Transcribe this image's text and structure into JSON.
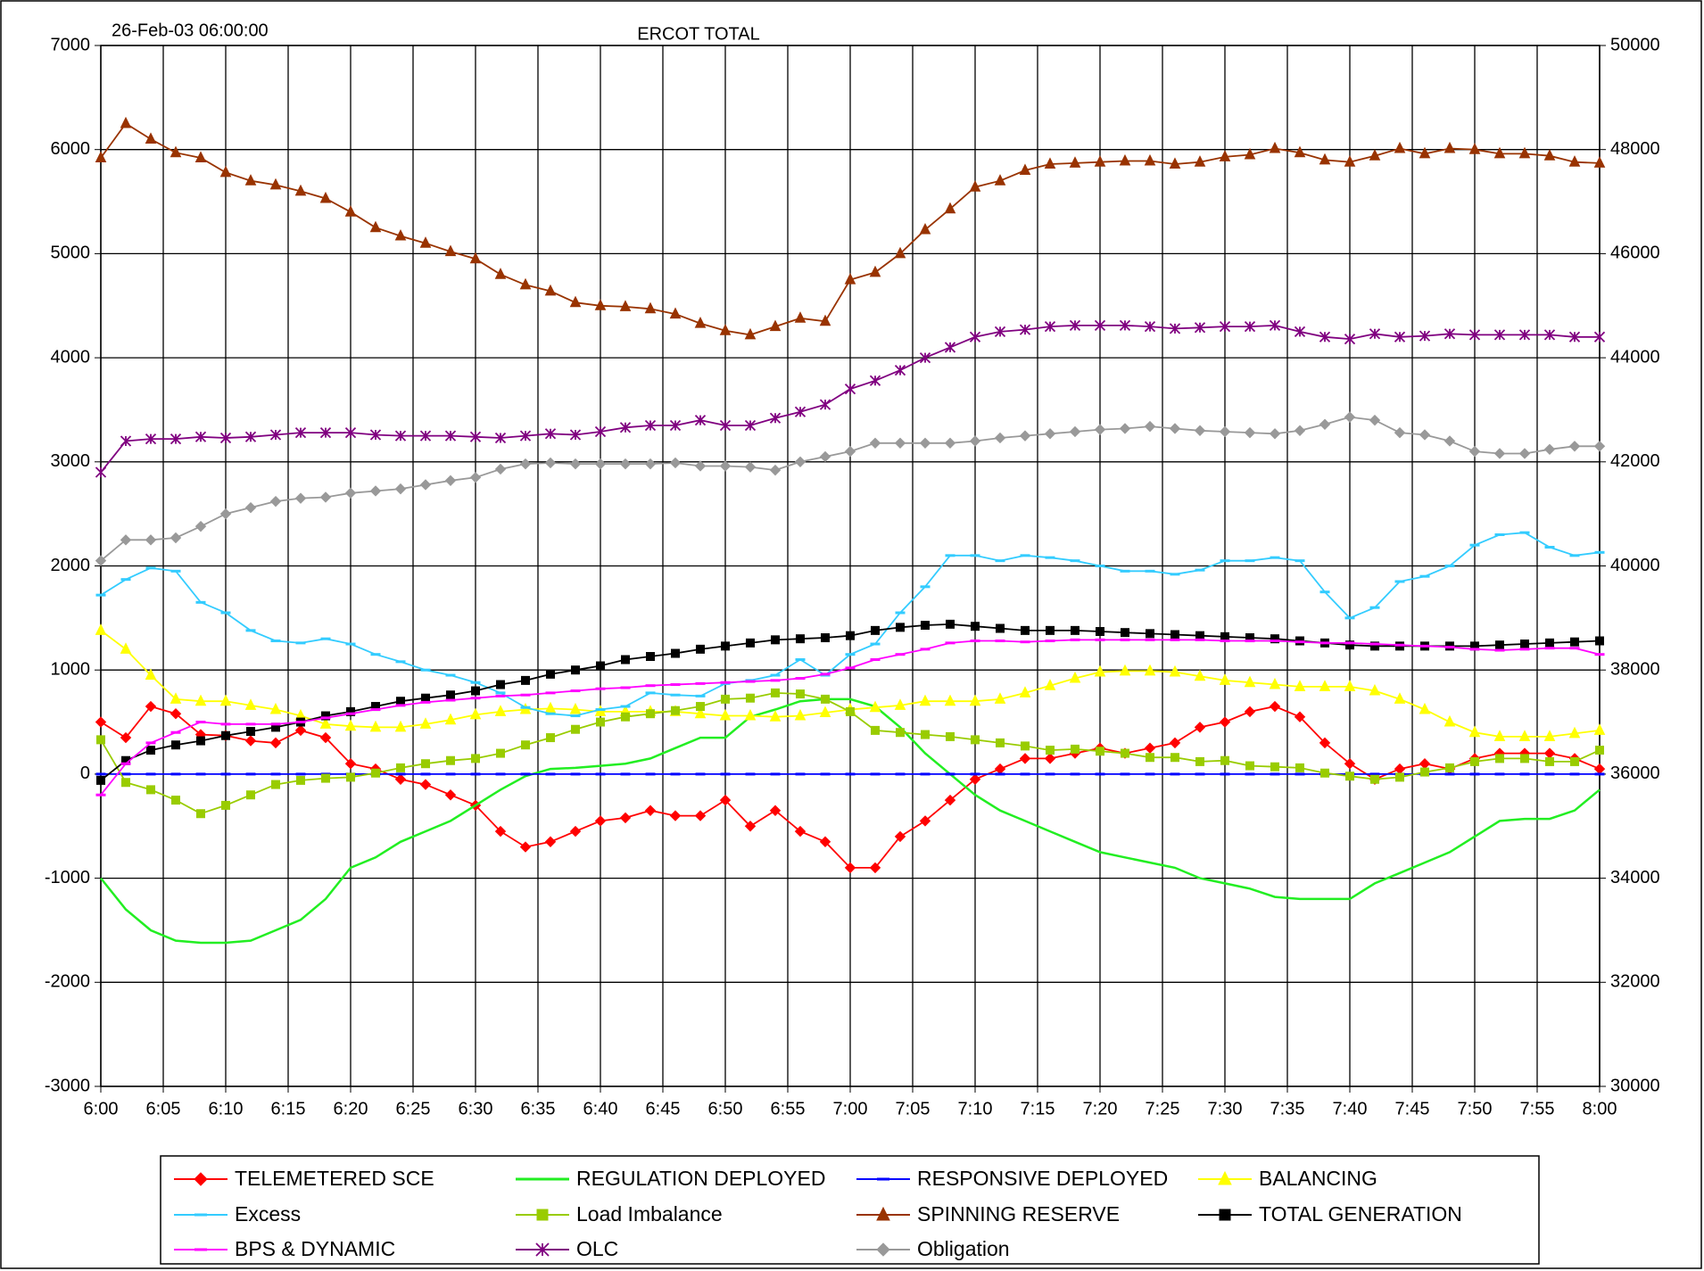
{
  "chart_data": {
    "type": "line",
    "title": "ERCOT TOTAL",
    "annotations": [
      "26-Feb-03 06:00:00"
    ],
    "x": [
      0,
      2,
      4,
      6,
      8,
      10,
      12,
      14,
      16,
      18,
      20,
      22,
      24,
      26,
      28,
      30,
      32,
      34,
      36,
      38,
      40,
      42,
      44,
      46,
      48,
      50,
      52,
      54,
      56,
      58,
      60,
      62,
      64,
      66,
      68,
      70,
      72,
      74,
      76,
      78,
      80,
      82,
      84,
      86,
      88,
      90,
      92,
      94,
      96,
      98,
      100,
      102,
      104,
      106,
      108,
      110,
      112,
      114,
      116,
      118,
      120
    ],
    "xlim": [
      0,
      120
    ],
    "xticks": [
      {
        "value": 0,
        "label": "6:00"
      },
      {
        "value": 5,
        "label": "6:05"
      },
      {
        "value": 10,
        "label": "6:10"
      },
      {
        "value": 15,
        "label": "6:15"
      },
      {
        "value": 20,
        "label": "6:20"
      },
      {
        "value": 25,
        "label": "6:25"
      },
      {
        "value": 30,
        "label": "6:30"
      },
      {
        "value": 35,
        "label": "6:35"
      },
      {
        "value": 40,
        "label": "6:40"
      },
      {
        "value": 45,
        "label": "6:45"
      },
      {
        "value": 50,
        "label": "6:50"
      },
      {
        "value": 55,
        "label": "6:55"
      },
      {
        "value": 60,
        "label": "7:00"
      },
      {
        "value": 65,
        "label": "7:05"
      },
      {
        "value": 70,
        "label": "7:10"
      },
      {
        "value": 75,
        "label": "7:15"
      },
      {
        "value": 80,
        "label": "7:20"
      },
      {
        "value": 85,
        "label": "7:25"
      },
      {
        "value": 90,
        "label": "7:30"
      },
      {
        "value": 95,
        "label": "7:35"
      },
      {
        "value": 100,
        "label": "7:40"
      },
      {
        "value": 105,
        "label": "7:45"
      },
      {
        "value": 110,
        "label": "7:50"
      },
      {
        "value": 115,
        "label": "7:55"
      },
      {
        "value": 120,
        "label": "8:00"
      }
    ],
    "ylim": [
      -3000,
      7000
    ],
    "yticks": [
      -3000,
      -2000,
      -1000,
      0,
      1000,
      2000,
      3000,
      4000,
      5000,
      6000,
      7000
    ],
    "y2lim": [
      30000,
      50000
    ],
    "y2ticks": [
      30000,
      32000,
      34000,
      36000,
      38000,
      40000,
      42000,
      44000,
      46000,
      48000,
      50000
    ],
    "grid": true,
    "legend": "bottom",
    "series": [
      {
        "name": "TELEMETERED SCE",
        "color": "#ff0000",
        "marker": "diamond",
        "values": [
          500,
          350,
          650,
          580,
          380,
          370,
          320,
          300,
          420,
          350,
          100,
          50,
          -50,
          -100,
          -200,
          -300,
          -550,
          -700,
          -650,
          -550,
          -450,
          -420,
          -350,
          -400,
          -400,
          -250,
          -500,
          -350,
          -550,
          -650,
          -900,
          -900,
          -600,
          -450,
          -250,
          -50,
          50,
          150,
          150,
          200,
          250,
          200,
          250,
          300,
          450,
          500,
          600,
          650,
          550,
          300,
          100,
          -50,
          50,
          100,
          50,
          150,
          200,
          200,
          200,
          150,
          50
        ]
      },
      {
        "name": "REGULATION DEPLOYED",
        "color": "#22ee22",
        "marker": "none",
        "values": [
          -1000,
          -1300,
          -1500,
          -1600,
          -1620,
          -1620,
          -1600,
          -1500,
          -1400,
          -1200,
          -900,
          -800,
          -650,
          -550,
          -450,
          -300,
          -150,
          -20,
          50,
          60,
          80,
          100,
          150,
          250,
          350,
          350,
          550,
          620,
          700,
          720,
          720,
          650,
          450,
          200,
          0,
          -200,
          -350,
          -450,
          -550,
          -650,
          -750,
          -800,
          -850,
          -900,
          -1000,
          -1050,
          -1100,
          -1180,
          -1200,
          -1200,
          -1200,
          -1050,
          -950,
          -850,
          -750,
          -600,
          -450,
          -430,
          -430,
          -350,
          -150
        ]
      },
      {
        "name": "RESPONSIVE DEPLOYED",
        "color": "#0000ff",
        "marker": "dash",
        "values": [
          0,
          0,
          0,
          0,
          0,
          0,
          0,
          0,
          0,
          0,
          0,
          0,
          0,
          0,
          0,
          0,
          0,
          0,
          0,
          0,
          0,
          0,
          0,
          0,
          0,
          0,
          0,
          0,
          0,
          0,
          0,
          0,
          0,
          0,
          0,
          0,
          0,
          0,
          0,
          0,
          0,
          0,
          0,
          0,
          0,
          0,
          0,
          0,
          0,
          0,
          0,
          0,
          0,
          0,
          0,
          0,
          0,
          0,
          0,
          0,
          0
        ]
      },
      {
        "name": "BALANCING",
        "color": "#ffff00",
        "marker": "triangle",
        "values": [
          1380,
          1200,
          950,
          720,
          700,
          700,
          660,
          620,
          560,
          480,
          460,
          450,
          450,
          480,
          520,
          570,
          600,
          620,
          630,
          620,
          600,
          600,
          600,
          600,
          580,
          560,
          560,
          550,
          560,
          590,
          620,
          640,
          660,
          700,
          700,
          700,
          720,
          780,
          850,
          920,
          980,
          990,
          990,
          980,
          940,
          900,
          880,
          860,
          840,
          840,
          840,
          800,
          720,
          620,
          500,
          400,
          360,
          360,
          360,
          390,
          420
        ]
      },
      {
        "name": "Excess",
        "color": "#33ccff",
        "marker": "dash",
        "values": [
          1720,
          1870,
          1980,
          1950,
          1650,
          1550,
          1380,
          1280,
          1260,
          1300,
          1250,
          1150,
          1080,
          1000,
          950,
          880,
          780,
          640,
          580,
          560,
          620,
          650,
          780,
          760,
          750,
          870,
          900,
          950,
          1100,
          950,
          1150,
          1250,
          1550,
          1800,
          2100,
          2100,
          2050,
          2100,
          2080,
          2050,
          2000,
          1950,
          1950,
          1920,
          1960,
          2050,
          2050,
          2080,
          2050,
          1750,
          1500,
          1600,
          1850,
          1900,
          2000,
          2200,
          2300,
          2320,
          2180,
          2100,
          2130
        ]
      },
      {
        "name": "Load Imbalance",
        "color": "#99cc00",
        "marker": "square",
        "values": [
          330,
          -80,
          -150,
          -250,
          -380,
          -300,
          -200,
          -100,
          -60,
          -40,
          -30,
          10,
          60,
          100,
          130,
          150,
          200,
          280,
          350,
          430,
          500,
          550,
          580,
          610,
          650,
          720,
          730,
          780,
          770,
          720,
          600,
          420,
          400,
          380,
          360,
          330,
          300,
          270,
          230,
          240,
          220,
          200,
          160,
          160,
          120,
          130,
          80,
          70,
          60,
          10,
          -20,
          -50,
          -30,
          20,
          60,
          120,
          150,
          150,
          120,
          120,
          230
        ]
      },
      {
        "name": "SPINNING RESERVE",
        "color": "#993300",
        "marker": "triangle",
        "values": [
          5920,
          6250,
          6100,
          5970,
          5920,
          5780,
          5700,
          5660,
          5600,
          5530,
          5400,
          5250,
          5170,
          5100,
          5020,
          4950,
          4800,
          4700,
          4640,
          4530,
          4500,
          4490,
          4470,
          4420,
          4330,
          4260,
          4220,
          4300,
          4380,
          4350,
          4750,
          4820,
          5000,
          5230,
          5430,
          5640,
          5700,
          5800,
          5860,
          5870,
          5880,
          5890,
          5890,
          5860,
          5880,
          5930,
          5950,
          6010,
          5970,
          5900,
          5880,
          5940,
          6010,
          5960,
          6010,
          6000,
          5960,
          5960,
          5940,
          5880,
          5870
        ]
      },
      {
        "name": "TOTAL GENERATION",
        "color": "#000000",
        "marker": "square",
        "axis": "y2",
        "values": [
          35880,
          36260,
          36460,
          36560,
          36640,
          36740,
          36820,
          36900,
          37000,
          37120,
          37200,
          37300,
          37400,
          37460,
          37520,
          37600,
          37720,
          37800,
          37920,
          38000,
          38080,
          38200,
          38260,
          38320,
          38400,
          38460,
          38520,
          38580,
          38600,
          38620,
          38660,
          38760,
          38820,
          38860,
          38880,
          38840,
          38800,
          38760,
          38760,
          38760,
          38740,
          38720,
          38700,
          38680,
          38660,
          38640,
          38620,
          38600,
          38560,
          38520,
          38480,
          38460,
          38460,
          38460,
          38460,
          38460,
          38480,
          38500,
          38520,
          38540,
          38560
        ]
      },
      {
        "name": "BPS & DYNAMIC",
        "color": "#ff00ff",
        "marker": "dash",
        "values": [
          -200,
          100,
          300,
          400,
          500,
          480,
          480,
          480,
          500,
          540,
          580,
          620,
          660,
          690,
          710,
          730,
          750,
          760,
          780,
          800,
          820,
          830,
          850,
          860,
          870,
          880,
          890,
          900,
          920,
          960,
          1020,
          1100,
          1150,
          1200,
          1260,
          1280,
          1280,
          1270,
          1280,
          1290,
          1290,
          1290,
          1290,
          1290,
          1290,
          1280,
          1280,
          1280,
          1270,
          1260,
          1260,
          1250,
          1240,
          1230,
          1220,
          1200,
          1190,
          1200,
          1210,
          1210,
          1150
        ]
      },
      {
        "name": "OLC",
        "color": "#800080",
        "marker": "star",
        "axis": "y2",
        "values": [
          41800,
          42400,
          42440,
          42440,
          42480,
          42460,
          42480,
          42520,
          42560,
          42560,
          42560,
          42520,
          42500,
          42500,
          42500,
          42480,
          42460,
          42500,
          42540,
          42520,
          42580,
          42660,
          42700,
          42700,
          42800,
          42700,
          42700,
          42840,
          42960,
          43100,
          43400,
          43560,
          43760,
          44000,
          44200,
          44400,
          44500,
          44540,
          44600,
          44620,
          44620,
          44620,
          44600,
          44560,
          44580,
          44600,
          44600,
          44620,
          44500,
          44400,
          44360,
          44460,
          44400,
          44420,
          44460,
          44440,
          44440,
          44440,
          44440,
          44400,
          44400
        ]
      },
      {
        "name": "Obligation",
        "color": "#999999",
        "marker": "diamond",
        "axis": "y2",
        "values": [
          40100,
          40500,
          40500,
          40540,
          40760,
          41000,
          41120,
          41240,
          41300,
          41320,
          41400,
          41440,
          41480,
          41560,
          41640,
          41700,
          41860,
          41960,
          41980,
          41960,
          41960,
          41960,
          41960,
          41980,
          41920,
          41920,
          41900,
          41840,
          42000,
          42100,
          42200,
          42360,
          42360,
          42360,
          42360,
          42400,
          42460,
          42500,
          42540,
          42580,
          42620,
          42640,
          42680,
          42640,
          42600,
          42580,
          42560,
          42540,
          42600,
          42720,
          42860,
          42800,
          42560,
          42520,
          42400,
          42200,
          42160,
          42160,
          42240,
          42300,
          42300
        ]
      }
    ]
  }
}
